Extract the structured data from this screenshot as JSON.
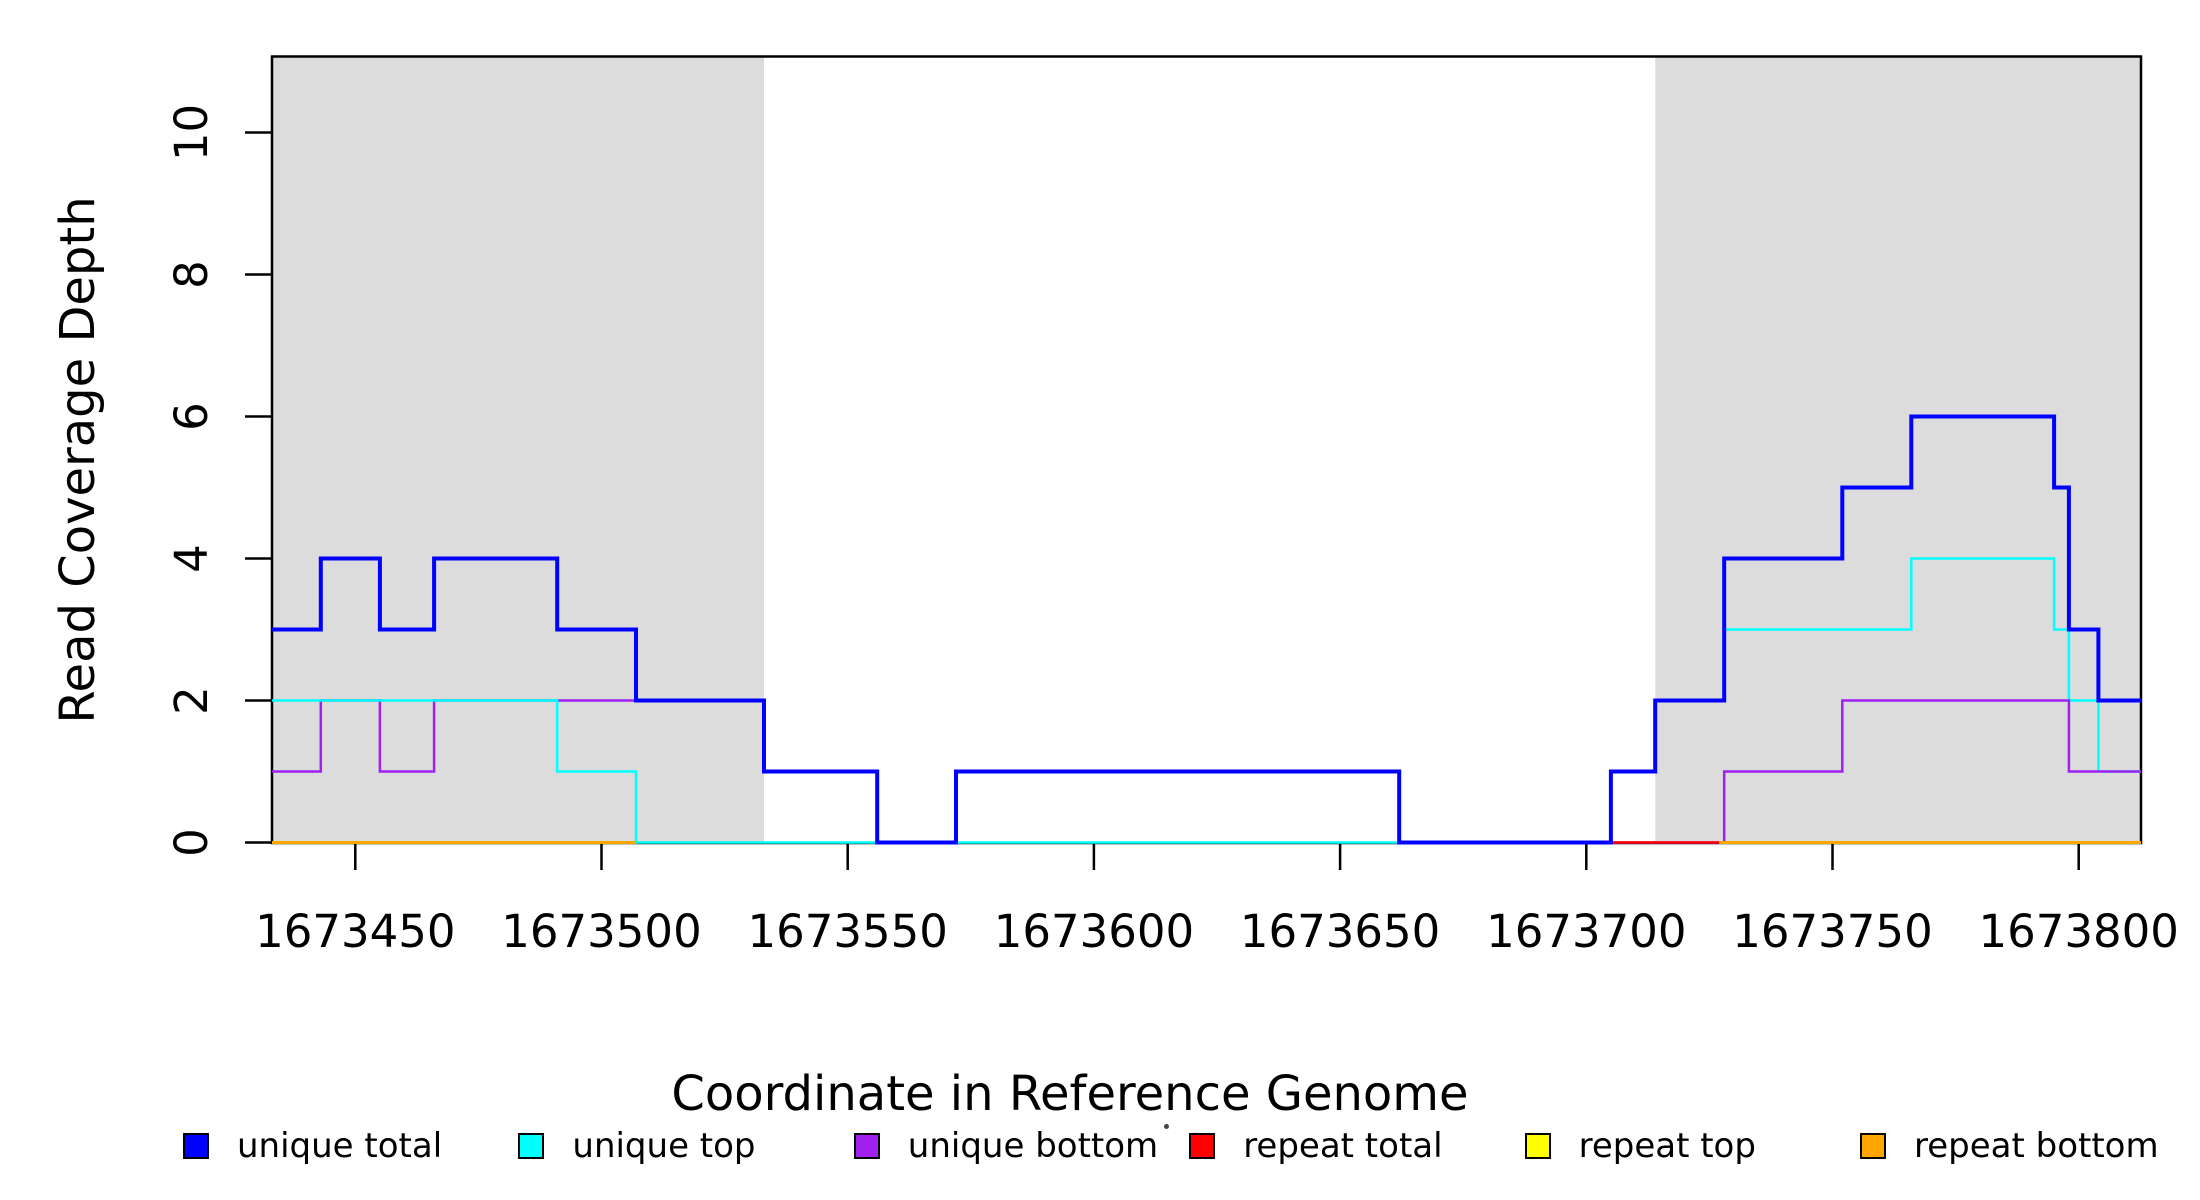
{
  "chart_data": {
    "type": "line",
    "subtype": "step",
    "title": "",
    "xlabel": "Coordinate in Reference Genome",
    "ylabel": "Read Coverage Depth",
    "xlim": [
      1673433,
      1673813
    ],
    "ylim": [
      0,
      11
    ],
    "xticks": [
      1673450,
      1673500,
      1673550,
      1673600,
      1673650,
      1673700,
      1673750,
      1673800
    ],
    "yticks": [
      0,
      2,
      4,
      6,
      8,
      10
    ],
    "grid": false,
    "legend_position": "bottom",
    "shaded_regions": [
      {
        "name": "repeat-region-left",
        "x1": 1673433,
        "x2": 1673533,
        "color": "#DCDCDC"
      },
      {
        "name": "repeat-region-right",
        "x1": 1673714,
        "x2": 1673813,
        "color": "#DCDCDC"
      }
    ],
    "series": [
      {
        "name": "unique total",
        "color": "#0000FF",
        "width": 4,
        "segments": [
          {
            "points": [
              [
                1673433,
                3
              ],
              [
                1673443,
                4
              ],
              [
                1673455,
                3
              ],
              [
                1673466,
                4
              ],
              [
                1673491,
                3
              ],
              [
                1673507,
                2
              ],
              [
                1673533,
                1
              ],
              [
                1673556,
                0
              ],
              [
                1673572,
                1
              ],
              [
                1673662,
                0
              ],
              [
                1673705,
                1
              ],
              [
                1673714,
                2
              ],
              [
                1673728,
                4
              ],
              [
                1673752,
                5
              ],
              [
                1673766,
                6
              ],
              [
                1673795,
                5
              ],
              [
                1673798,
                3
              ],
              [
                1673804,
                2
              ]
            ],
            "end": 1673813
          }
        ]
      },
      {
        "name": "unique top",
        "color": "#00FFFF",
        "width": 2.5,
        "segments": [
          {
            "points": [
              [
                1673433,
                2
              ],
              [
                1673491,
                1
              ],
              [
                1673507,
                0
              ],
              [
                1673705,
                1
              ],
              [
                1673714,
                2
              ],
              [
                1673728,
                3
              ],
              [
                1673766,
                4
              ],
              [
                1673795,
                3
              ],
              [
                1673798,
                2
              ],
              [
                1673804,
                1
              ]
            ],
            "end": 1673813
          }
        ]
      },
      {
        "name": "unique bottom",
        "color": "#A020F0",
        "width": 2.5,
        "segments": [
          {
            "points": [
              [
                1673433,
                1
              ],
              [
                1673443,
                2
              ],
              [
                1673455,
                1
              ],
              [
                1673466,
                2
              ],
              [
                1673533,
                1
              ],
              [
                1673556,
                0
              ],
              [
                1673572,
                1
              ],
              [
                1673662,
                0
              ],
              [
                1673728,
                1
              ],
              [
                1673752,
                2
              ],
              [
                1673798,
                1
              ]
            ],
            "end": 1673813
          }
        ]
      },
      {
        "name": "repeat total",
        "color": "#FF0000",
        "width": 2.5,
        "segments": [
          {
            "points": [
              [
                1673705,
                0
              ]
            ],
            "end": 1673813
          }
        ]
      },
      {
        "name": "repeat top",
        "color": "#FFFF00",
        "width": 2.5,
        "segments": [
          {
            "points": [
              [
                1673433,
                0
              ]
            ],
            "end": 1673507
          },
          {
            "points": [
              [
                1673727,
                0
              ]
            ],
            "end": 1673813
          }
        ]
      },
      {
        "name": "repeat bottom",
        "color": "#FFA500",
        "width": 3,
        "segments": [
          {
            "points": [
              [
                1673433,
                0
              ]
            ],
            "end": 1673507
          },
          {
            "points": [
              [
                1673727,
                0
              ]
            ],
            "end": 1673813
          }
        ]
      }
    ]
  },
  "legend": {
    "items": [
      {
        "label": "unique total",
        "color": "#0000FF"
      },
      {
        "label": "unique top",
        "color": "#00FFFF"
      },
      {
        "label": "unique bottom",
        "color": "#A020F0"
      },
      {
        "label": "repeat total",
        "color": "#FF0000"
      },
      {
        "label": "repeat top",
        "color": "#FFFF00"
      },
      {
        "label": "repeat bottom",
        "color": "#FFA500"
      }
    ]
  }
}
